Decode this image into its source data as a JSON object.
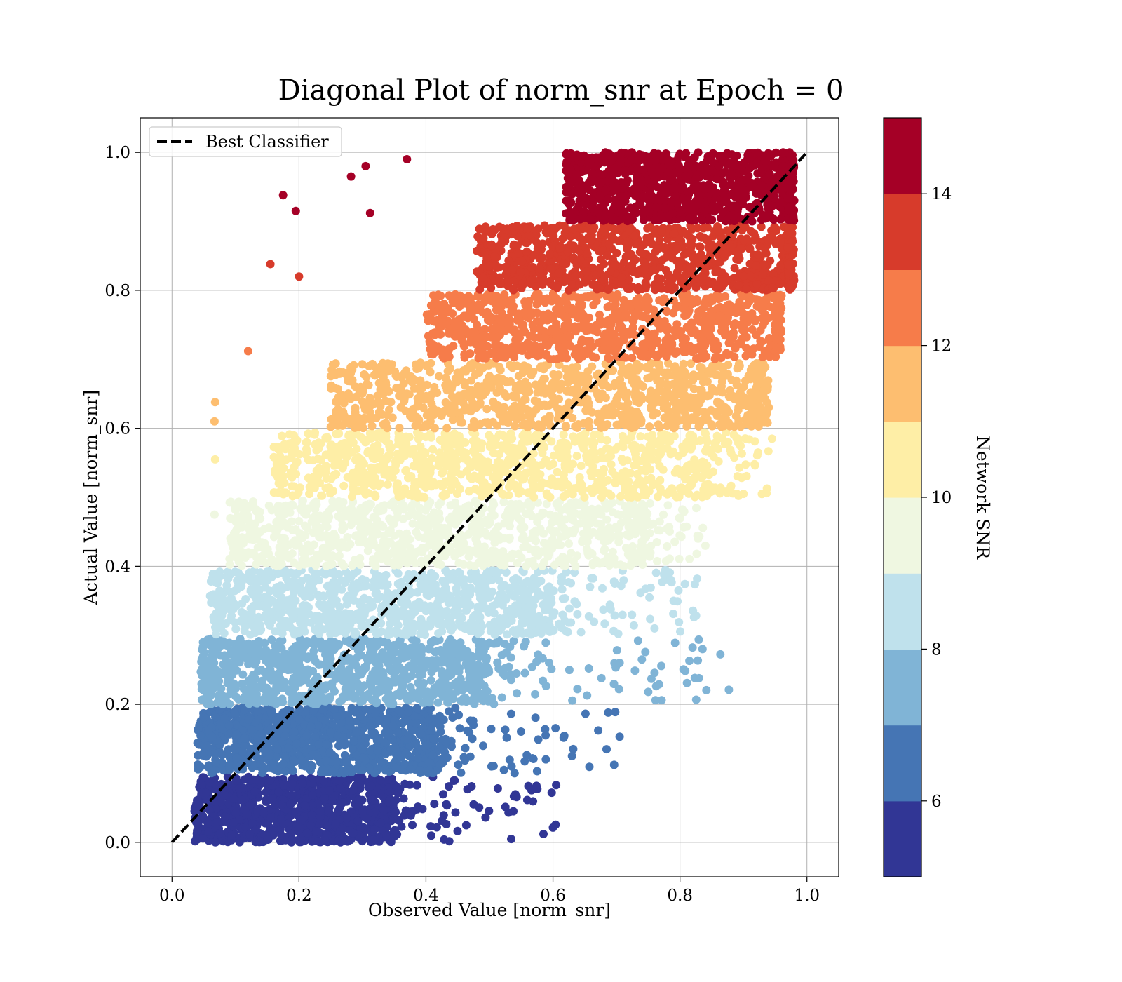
{
  "chart_data": {
    "type": "scatter",
    "title": "Diagonal Plot of norm_snr at Epoch = 0",
    "xlabel": "Observed Value [norm_snr]",
    "ylabel": "Actual Value [norm_snr]",
    "xlim": [
      -0.05,
      1.05
    ],
    "ylim": [
      -0.05,
      1.05
    ],
    "xticks": [
      "0.0",
      "0.2",
      "0.4",
      "0.6",
      "0.8",
      "1.0"
    ],
    "yticks": [
      "0.0",
      "0.2",
      "0.4",
      "0.6",
      "0.8",
      "1.0"
    ],
    "grid": true,
    "legend": {
      "location": "upper-left",
      "entries": [
        {
          "label": "Best Classifier",
          "style": "dashed",
          "color": "#000000"
        }
      ]
    },
    "reference_line": {
      "x": [
        0.0,
        1.0
      ],
      "y": [
        0.0,
        1.0
      ]
    },
    "colorbar": {
      "label": "Network SNR",
      "range": [
        5,
        15
      ],
      "ticks": [
        "6",
        "8",
        "10",
        "12",
        "14"
      ],
      "colors": [
        "#313695",
        "#4575b4",
        "#80b4d6",
        "#bfe1ec",
        "#eff7e1",
        "#feeea6",
        "#fdbe70",
        "#f67c4a",
        "#d73b2b",
        "#a50026"
      ]
    },
    "bands": [
      {
        "snr_range": [
          5,
          6
        ],
        "y_range": [
          0.0,
          0.095
        ],
        "x_core": [
          0.035,
          0.35
        ],
        "x_tail_max": 0.61
      },
      {
        "snr_range": [
          6,
          7
        ],
        "y_range": [
          0.1,
          0.195
        ],
        "x_core": [
          0.04,
          0.42
        ],
        "x_tail_max": 0.71
      },
      {
        "snr_range": [
          7,
          8
        ],
        "y_range": [
          0.2,
          0.295
        ],
        "x_core": [
          0.045,
          0.5
        ],
        "x_tail_max": 0.88
      },
      {
        "snr_range": [
          8,
          9
        ],
        "y_range": [
          0.3,
          0.395
        ],
        "x_core": [
          0.06,
          0.6
        ],
        "x_tail_max": 0.83
      },
      {
        "snr_range": [
          9,
          10
        ],
        "y_range": [
          0.4,
          0.495
        ],
        "x_core": [
          0.09,
          0.74
        ],
        "x_tail_max": 0.84
      },
      {
        "snr_range": [
          10,
          11
        ],
        "y_range": [
          0.5,
          0.595
        ],
        "x_core": [
          0.16,
          0.84
        ],
        "x_tail_max": 0.94
      },
      {
        "snr_range": [
          11,
          12
        ],
        "y_range": [
          0.6,
          0.695
        ],
        "x_core": [
          0.25,
          0.92
        ],
        "x_tail_max": 0.94
      },
      {
        "snr_range": [
          12,
          13
        ],
        "y_range": [
          0.7,
          0.795
        ],
        "x_core": [
          0.4,
          0.95
        ],
        "x_tail_max": 0.96
      },
      {
        "snr_range": [
          13,
          14
        ],
        "y_range": [
          0.8,
          0.895
        ],
        "x_core": [
          0.48,
          0.97
        ],
        "x_tail_max": 0.97
      },
      {
        "snr_range": [
          14,
          15
        ],
        "y_range": [
          0.9,
          1.0
        ],
        "x_core": [
          0.62,
          0.97
        ],
        "x_tail_max": 0.98
      }
    ],
    "outliers": [
      {
        "x": 0.585,
        "y": 0.012,
        "snr": 5.5
      },
      {
        "x": 0.605,
        "y": 0.083,
        "snr": 5.5
      },
      {
        "x": 0.53,
        "y": 0.043,
        "snr": 5.5
      },
      {
        "x": 0.475,
        "y": 0.055,
        "snr": 5.5
      },
      {
        "x": 0.63,
        "y": 0.125,
        "snr": 6.5
      },
      {
        "x": 0.705,
        "y": 0.153,
        "snr": 6.5
      },
      {
        "x": 0.687,
        "y": 0.188,
        "snr": 6.5
      },
      {
        "x": 0.575,
        "y": 0.103,
        "snr": 6.5
      },
      {
        "x": 0.877,
        "y": 0.221,
        "snr": 7.5
      },
      {
        "x": 0.75,
        "y": 0.218,
        "snr": 7.5
      },
      {
        "x": 0.74,
        "y": 0.265,
        "snr": 7.5
      },
      {
        "x": 0.705,
        "y": 0.26,
        "snr": 7.5
      },
      {
        "x": 0.827,
        "y": 0.382,
        "snr": 8.5
      },
      {
        "x": 0.79,
        "y": 0.35,
        "snr": 8.5
      },
      {
        "x": 0.76,
        "y": 0.31,
        "snr": 8.5
      },
      {
        "x": 0.175,
        "y": 0.938,
        "snr": 14.5
      },
      {
        "x": 0.195,
        "y": 0.915,
        "snr": 14.5
      },
      {
        "x": 0.282,
        "y": 0.965,
        "snr": 14.5
      },
      {
        "x": 0.305,
        "y": 0.98,
        "snr": 14.5
      },
      {
        "x": 0.312,
        "y": 0.912,
        "snr": 14.5
      },
      {
        "x": 0.37,
        "y": 0.99,
        "snr": 14.5
      },
      {
        "x": 0.155,
        "y": 0.838,
        "snr": 13.5
      },
      {
        "x": 0.2,
        "y": 0.82,
        "snr": 13.5
      },
      {
        "x": 0.12,
        "y": 0.712,
        "snr": 12.5
      },
      {
        "x": 0.068,
        "y": 0.638,
        "snr": 11.5
      },
      {
        "x": 0.067,
        "y": 0.61,
        "snr": 11.5
      },
      {
        "x": 0.068,
        "y": 0.555,
        "snr": 10.5
      },
      {
        "x": 0.945,
        "y": 0.585,
        "snr": 10.5
      },
      {
        "x": 0.9,
        "y": 0.505,
        "snr": 10.5
      },
      {
        "x": 0.067,
        "y": 0.475,
        "snr": 9.5
      },
      {
        "x": 0.84,
        "y": 0.43,
        "snr": 9.5
      }
    ]
  }
}
